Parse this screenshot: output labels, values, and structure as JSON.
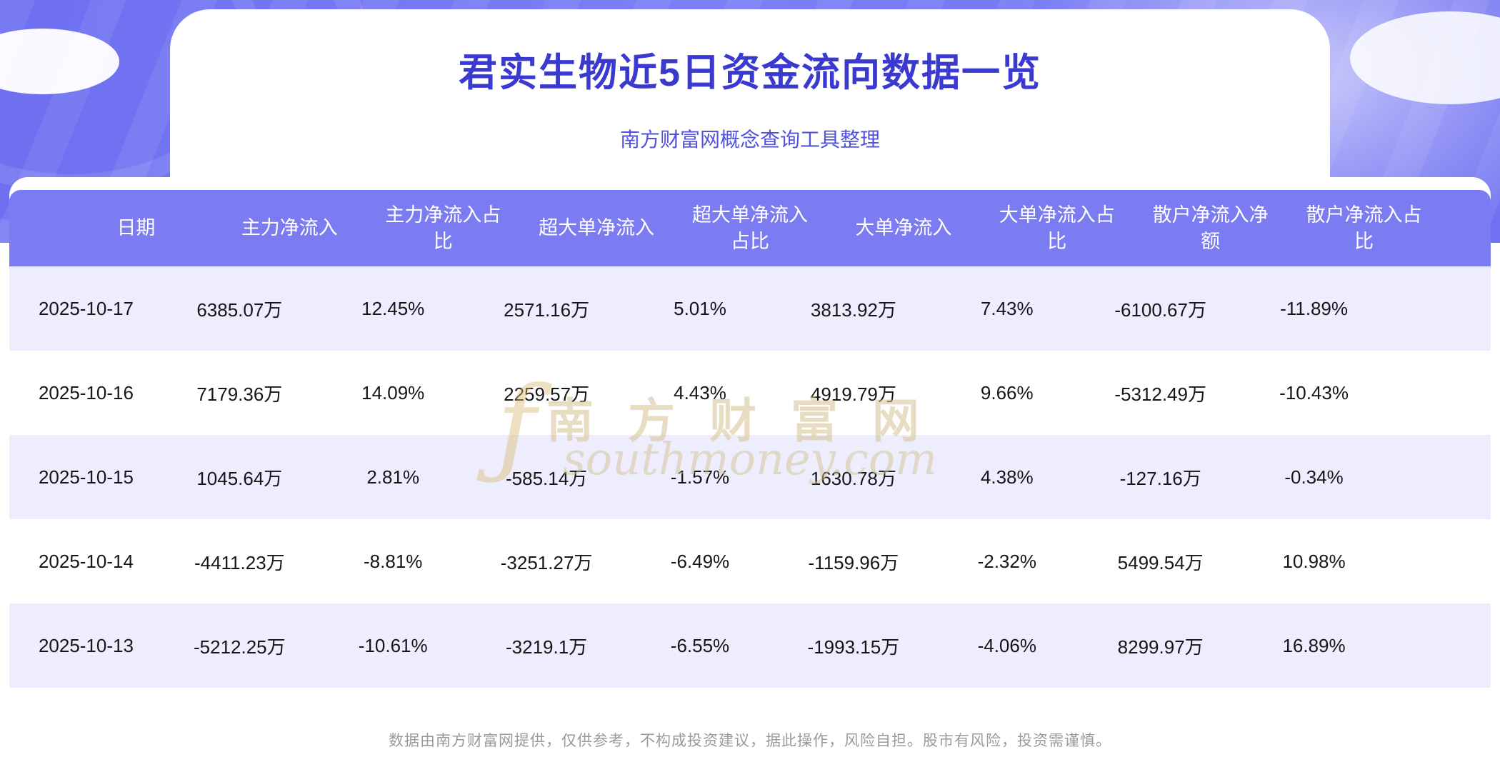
{
  "page": {
    "title": "君实生物近5日资金流向数据一览",
    "subtitle": "南方财富网概念查询工具整理",
    "footer": "数据由南方财富网提供，仅供参考，不构成投资建议，据此操作，风险自担。股市有风险，投资需谨慎。"
  },
  "watermark": {
    "cn": "南方财富网",
    "en": "southmoney.com",
    "symbol": "ƒ"
  },
  "colors": {
    "band_purple": "#7577f2",
    "header_bg": "#7b7cf2",
    "row_alt": "#ededfd",
    "title_text": "#3a3ace",
    "subtitle_text": "#5252dd",
    "footer_text": "#9a9a9a",
    "watermark_gold": "#d6c192"
  },
  "table": {
    "columns_display": [
      "日期",
      "主力净流入",
      "主力净流入占\n比",
      "超大单净流入",
      "超大单净流入\n占比",
      "大单净流入",
      "大单净流入占\n比",
      "散户净流入净\n额",
      "散户净流入占\n比"
    ]
  },
  "chart_data": {
    "type": "table",
    "title": "君实生物近5日资金流向数据一览",
    "columns": [
      "日期",
      "主力净流入",
      "主力净流入占比",
      "超大单净流入",
      "超大单净流入占比",
      "大单净流入",
      "大单净流入占比",
      "散户净流入净额",
      "散户净流入占比"
    ],
    "rows": [
      [
        "2025-10-17",
        "6385.07万",
        "12.45%",
        "2571.16万",
        "5.01%",
        "3813.92万",
        "7.43%",
        "-6100.67万",
        "-11.89%"
      ],
      [
        "2025-10-16",
        "7179.36万",
        "14.09%",
        "2259.57万",
        "4.43%",
        "4919.79万",
        "9.66%",
        "-5312.49万",
        "-10.43%"
      ],
      [
        "2025-10-15",
        "1045.64万",
        "2.81%",
        "-585.14万",
        "-1.57%",
        "1630.78万",
        "4.38%",
        "-127.16万",
        "-0.34%"
      ],
      [
        "2025-10-14",
        "-4411.23万",
        "-8.81%",
        "-3251.27万",
        "-6.49%",
        "-1159.96万",
        "-2.32%",
        "5499.54万",
        "10.98%"
      ],
      [
        "2025-10-13",
        "-5212.25万",
        "-10.61%",
        "-3219.1万",
        "-6.55%",
        "-1993.15万",
        "-4.06%",
        "8299.97万",
        "16.89%"
      ]
    ]
  }
}
